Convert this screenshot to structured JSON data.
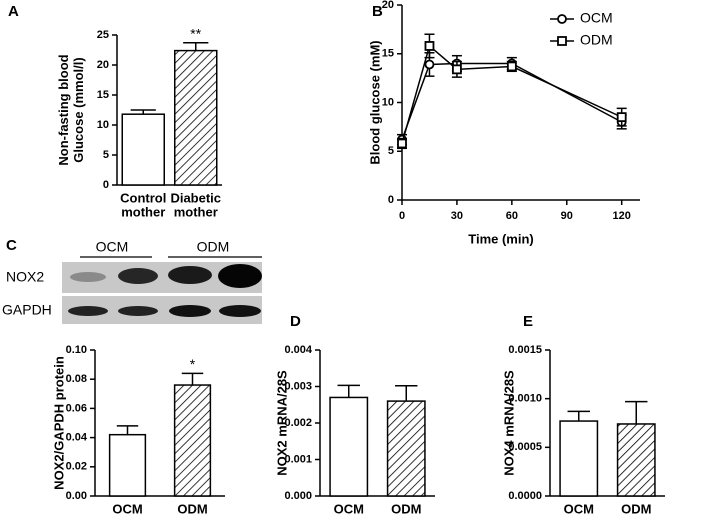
{
  "chart_data": [
    {
      "type": "bar",
      "label": "A",
      "ylabel": [
        "Non-fasting blood",
        "Glucose (mmol/l)"
      ],
      "categories": [
        [
          "Control",
          "mother"
        ],
        [
          "Diabetic",
          "mother"
        ]
      ],
      "values": [
        11.8,
        22.4
      ],
      "errors": [
        0.7,
        1.3
      ],
      "hatch": [
        false,
        true
      ],
      "annotations": [
        {
          "text": "**",
          "category": 1
        }
      ],
      "ylim": [
        0,
        25
      ],
      "yticks": [
        0,
        5,
        10,
        15,
        20,
        25
      ]
    },
    {
      "type": "line",
      "label": "B",
      "ylabel": "Blood glucose (mM)",
      "xlabel": "Time (min)",
      "x": [
        0,
        15,
        30,
        60,
        120
      ],
      "series": [
        {
          "name": "OCM",
          "marker": "circle",
          "values": [
            6.2,
            13.9,
            14.0,
            14.0,
            8.0
          ],
          "errors": [
            0.5,
            1.2,
            0.8,
            0.6,
            0.7
          ]
        },
        {
          "name": "ODM",
          "marker": "square",
          "values": [
            5.8,
            15.8,
            13.4,
            13.7,
            8.5
          ],
          "errors": [
            0.5,
            1.2,
            0.8,
            0.5,
            0.9
          ]
        }
      ],
      "legend": "upper right",
      "xlim": [
        0,
        130
      ],
      "xticks": [
        0,
        30,
        60,
        90,
        120
      ],
      "ylim": [
        0,
        20
      ],
      "yticks": [
        0,
        5,
        10,
        15,
        20
      ]
    },
    {
      "type": "bar",
      "label": "C",
      "ylabel": "NOX2/GAPDH protein",
      "categories": [
        "OCM",
        "ODM"
      ],
      "values": [
        0.042,
        0.076
      ],
      "errors": [
        0.006,
        0.008
      ],
      "hatch": [
        false,
        true
      ],
      "annotations": [
        {
          "text": "*",
          "category": 1
        }
      ],
      "ylim": [
        0,
        0.1
      ],
      "yticks": [
        {
          "value": 0,
          "label": "0.00"
        },
        {
          "value": 0.02,
          "label": "0.02"
        },
        {
          "value": 0.04,
          "label": "0.04"
        },
        {
          "value": 0.06,
          "label": "0.06"
        },
        {
          "value": 0.08,
          "label": "0.08"
        },
        {
          "value": 0.1,
          "label": "0.10"
        }
      ]
    },
    {
      "type": "bar",
      "label": "D",
      "ylabel": "NOX2 mRNA/28S",
      "categories": [
        "OCM",
        "ODM"
      ],
      "values": [
        0.0027,
        0.0026
      ],
      "errors": [
        0.00033,
        0.00042
      ],
      "hatch": [
        false,
        true
      ],
      "ylim": [
        0,
        0.004
      ],
      "yticks": [
        {
          "value": 0,
          "label": "0.000"
        },
        {
          "value": 0.001,
          "label": "0.001"
        },
        {
          "value": 0.002,
          "label": "0.002"
        },
        {
          "value": 0.003,
          "label": "0.003"
        },
        {
          "value": 0.004,
          "label": "0.004"
        }
      ]
    },
    {
      "type": "bar",
      "label": "E",
      "ylabel": "NOX4 mRNA/28S",
      "categories": [
        "OCM",
        "ODM"
      ],
      "values": [
        0.00077,
        0.00074
      ],
      "errors": [
        0.0001,
        0.00023
      ],
      "hatch": [
        false,
        true
      ],
      "ylim": [
        0,
        0.0015
      ],
      "yticks": [
        {
          "value": 0,
          "label": "0.0000"
        },
        {
          "value": 0.0005,
          "label": "0.0005"
        },
        {
          "value": 0.001,
          "label": "0.0010"
        },
        {
          "value": 0.0015,
          "label": "0.0015"
        }
      ]
    }
  ],
  "blot": {
    "groups": [
      "OCM",
      "ODM"
    ],
    "rows": [
      "NOX2",
      "GAPDH"
    ]
  }
}
